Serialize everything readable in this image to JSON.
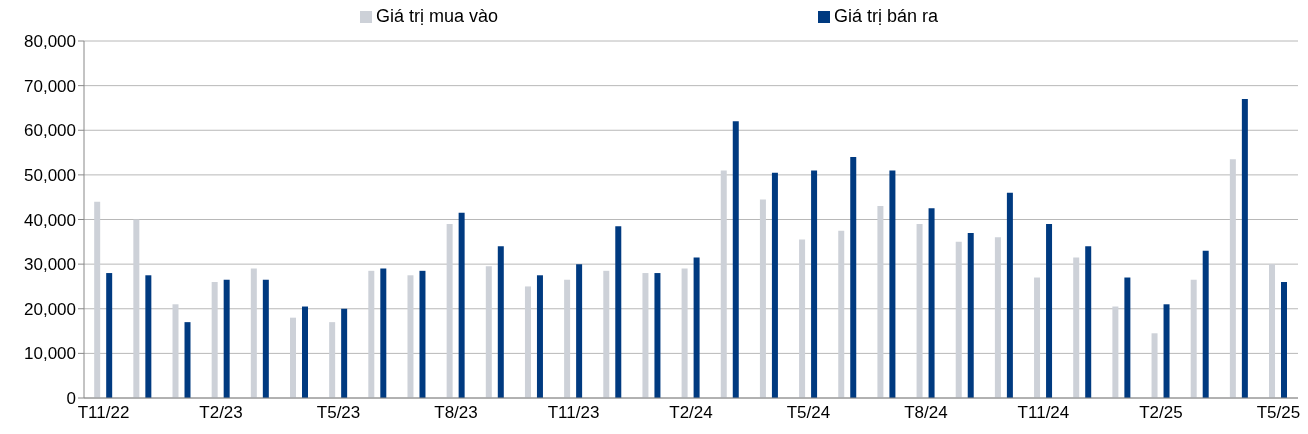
{
  "chart_data": {
    "type": "bar",
    "categories": [
      "T11/22",
      null,
      null,
      "T2/23",
      null,
      null,
      "T5/23",
      null,
      null,
      "T8/23",
      null,
      null,
      "T11/23",
      null,
      null,
      "T2/24",
      null,
      null,
      "T5/24",
      null,
      null,
      "T8/24",
      null,
      null,
      "T11/24",
      null,
      null,
      "T2/25",
      null,
      null,
      "T5/25"
    ],
    "series": [
      {
        "name": "Giá trị mua vào",
        "color": "#cdd1d8",
        "values": [
          44000,
          40000,
          21000,
          26000,
          29000,
          18000,
          17000,
          28500,
          27500,
          39000,
          29500,
          25000,
          26500,
          28500,
          28000,
          29000,
          51000,
          44500,
          35500,
          37500,
          43000,
          39000,
          35000,
          36000,
          27000,
          31500,
          20500,
          14500,
          26500,
          53500,
          30000
        ]
      },
      {
        "name": "Giá trị bán ra",
        "color": "#003a80",
        "values": [
          28000,
          27500,
          17000,
          26500,
          26500,
          20500,
          20000,
          29000,
          28500,
          41500,
          34000,
          27500,
          30000,
          38500,
          28000,
          31500,
          62000,
          50500,
          51000,
          54000,
          51000,
          42500,
          37000,
          46000,
          39000,
          34000,
          27000,
          21000,
          33000,
          67000,
          26000
        ]
      }
    ],
    "ylim": [
      0,
      80000
    ],
    "yticks": [
      {
        "value": 0,
        "label": "0"
      },
      {
        "value": 10000,
        "label": "10,000"
      },
      {
        "value": 20000,
        "label": "20,000"
      },
      {
        "value": 30000,
        "label": "30,000"
      },
      {
        "value": 40000,
        "label": "40,000"
      },
      {
        "value": 50000,
        "label": "50,000"
      },
      {
        "value": 60000,
        "label": "60,000"
      },
      {
        "value": 70000,
        "label": "70,000"
      },
      {
        "value": 80000,
        "label": "80,000"
      }
    ],
    "grid": "y",
    "legend": "top"
  }
}
